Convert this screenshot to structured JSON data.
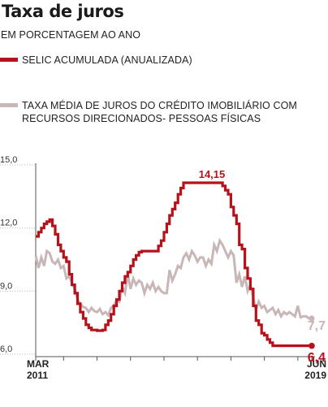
{
  "header": {
    "title": "Taxa de juros",
    "subtitle": "EM PORCENTAGEM AO ANO"
  },
  "colors": {
    "selic": "#b5121b",
    "imobiliario": "#c9b6b6",
    "axis": "#555555",
    "grid": "#bbbbbb"
  },
  "chart_data": {
    "type": "line",
    "title": "Taxa de juros",
    "subtitle": "EM PORCENTAGEM AO ANO",
    "ylim": [
      6.0,
      15.0
    ],
    "yticks": [
      "15,0",
      "12,0",
      "9,0",
      "6,0"
    ],
    "yticks_values": [
      15.0,
      12.0,
      9.0,
      6.0
    ],
    "x_start": "2011-03",
    "x_end": "2019-06",
    "xtick_labels": [
      {
        "month": "MAR",
        "year": "2011"
      },
      {
        "month": "JUN",
        "year": "2019"
      }
    ],
    "grid": false,
    "legend_position": "top-left",
    "annotations": {
      "peak_label": "14,15",
      "selic_end_label": "6,4",
      "imobiliario_end_label": "7,7"
    },
    "series": [
      {
        "name": "SELIC ACUMULADA (ANUALIZADA)",
        "legend_label": "SELIC ACUMULADA (ANUALIZADA)",
        "color": "#b5121b",
        "step": true,
        "points": [
          [
            "2011-03",
            11.6
          ],
          [
            "2011-04",
            11.8
          ],
          [
            "2011-05",
            12.0
          ],
          [
            "2011-06",
            12.2
          ],
          [
            "2011-07",
            12.3
          ],
          [
            "2011-08",
            12.4
          ],
          [
            "2011-09",
            12.1
          ],
          [
            "2011-10",
            11.7
          ],
          [
            "2011-11",
            11.2
          ],
          [
            "2011-12",
            10.9
          ],
          [
            "2012-01",
            10.6
          ],
          [
            "2012-02",
            10.4
          ],
          [
            "2012-03",
            9.8
          ],
          [
            "2012-04",
            9.3
          ],
          [
            "2012-05",
            8.9
          ],
          [
            "2012-06",
            8.4
          ],
          [
            "2012-07",
            8.0
          ],
          [
            "2012-08",
            7.7
          ],
          [
            "2012-09",
            7.4
          ],
          [
            "2012-10",
            7.25
          ],
          [
            "2012-11",
            7.15
          ],
          [
            "2012-12",
            7.15
          ],
          [
            "2013-01",
            7.12
          ],
          [
            "2013-02",
            7.12
          ],
          [
            "2013-03",
            7.15
          ],
          [
            "2013-04",
            7.4
          ],
          [
            "2013-05",
            7.6
          ],
          [
            "2013-06",
            7.9
          ],
          [
            "2013-07",
            8.3
          ],
          [
            "2013-08",
            8.6
          ],
          [
            "2013-09",
            9.0
          ],
          [
            "2013-10",
            9.4
          ],
          [
            "2013-11",
            9.7
          ],
          [
            "2013-12",
            9.9
          ],
          [
            "2014-01",
            10.2
          ],
          [
            "2014-02",
            10.5
          ],
          [
            "2014-03",
            10.7
          ],
          [
            "2014-04",
            10.85
          ],
          [
            "2014-05",
            10.9
          ],
          [
            "2014-06",
            10.9
          ],
          [
            "2014-07",
            10.9
          ],
          [
            "2014-08",
            10.9
          ],
          [
            "2014-09",
            10.9
          ],
          [
            "2014-10",
            10.9
          ],
          [
            "2014-11",
            11.15
          ],
          [
            "2014-12",
            11.4
          ],
          [
            "2015-01",
            11.8
          ],
          [
            "2015-02",
            12.2
          ],
          [
            "2015-03",
            12.6
          ],
          [
            "2015-04",
            12.9
          ],
          [
            "2015-05",
            13.2
          ],
          [
            "2015-06",
            13.6
          ],
          [
            "2015-07",
            13.9
          ],
          [
            "2015-08",
            14.15
          ],
          [
            "2015-09",
            14.15
          ],
          [
            "2015-10",
            14.15
          ],
          [
            "2015-11",
            14.15
          ],
          [
            "2015-12",
            14.15
          ],
          [
            "2016-01",
            14.15
          ],
          [
            "2016-02",
            14.15
          ],
          [
            "2016-03",
            14.15
          ],
          [
            "2016-04",
            14.15
          ],
          [
            "2016-05",
            14.15
          ],
          [
            "2016-06",
            14.15
          ],
          [
            "2016-07",
            14.15
          ],
          [
            "2016-08",
            14.15
          ],
          [
            "2016-09",
            14.15
          ],
          [
            "2016-10",
            14.0
          ],
          [
            "2016-11",
            13.8
          ],
          [
            "2016-12",
            13.6
          ],
          [
            "2017-01",
            13.0
          ],
          [
            "2017-02",
            12.6
          ],
          [
            "2017-03",
            12.2
          ],
          [
            "2017-04",
            11.2
          ],
          [
            "2017-05",
            11.0
          ],
          [
            "2017-06",
            10.1
          ],
          [
            "2017-07",
            9.6
          ],
          [
            "2017-08",
            9.1
          ],
          [
            "2017-09",
            8.3
          ],
          [
            "2017-10",
            7.6
          ],
          [
            "2017-11",
            7.4
          ],
          [
            "2017-12",
            7.0
          ],
          [
            "2018-01",
            6.9
          ],
          [
            "2018-02",
            6.7
          ],
          [
            "2018-03",
            6.55
          ],
          [
            "2018-04",
            6.4
          ],
          [
            "2018-05",
            6.4
          ],
          [
            "2018-06",
            6.4
          ],
          [
            "2018-07",
            6.4
          ],
          [
            "2018-08",
            6.4
          ],
          [
            "2018-09",
            6.4
          ],
          [
            "2018-10",
            6.4
          ],
          [
            "2018-11",
            6.4
          ],
          [
            "2018-12",
            6.4
          ],
          [
            "2019-01",
            6.4
          ],
          [
            "2019-02",
            6.4
          ],
          [
            "2019-03",
            6.4
          ],
          [
            "2019-04",
            6.4
          ],
          [
            "2019-05",
            6.4
          ],
          [
            "2019-06",
            6.4
          ]
        ]
      },
      {
        "name": "TAXA MÉDIA DE JUROS DO CRÉDITO IMOBILIÁRIO COM RECURSOS DIRECIONADOS- PESSOAS FÍSICAS",
        "legend_label": "TAXA MÉDIA DE JUROS DO CRÉDITO IMOBILIÁRIO COM RECURSOS DIRECIONADOS- PESSOAS FÍSICAS",
        "color": "#c9b6b6",
        "step": false,
        "points": [
          [
            "2011-03",
            10.7
          ],
          [
            "2011-04",
            10.1
          ],
          [
            "2011-05",
            10.6
          ],
          [
            "2011-06",
            10.2
          ],
          [
            "2011-07",
            10.9
          ],
          [
            "2011-08",
            10.8
          ],
          [
            "2011-09",
            10.4
          ],
          [
            "2011-10",
            10.3
          ],
          [
            "2011-11",
            10.5
          ],
          [
            "2011-12",
            10.1
          ],
          [
            "2012-01",
            10.2
          ],
          [
            "2012-02",
            9.6
          ],
          [
            "2012-03",
            9.7
          ],
          [
            "2012-04",
            9.4
          ],
          [
            "2012-05",
            9.1
          ],
          [
            "2012-06",
            8.6
          ],
          [
            "2012-07",
            8.4
          ],
          [
            "2012-08",
            8.25
          ],
          [
            "2012-09",
            8.2
          ],
          [
            "2012-10",
            8.0
          ],
          [
            "2012-11",
            8.2
          ],
          [
            "2012-12",
            8.05
          ],
          [
            "2013-01",
            8.0
          ],
          [
            "2013-02",
            8.15
          ],
          [
            "2013-03",
            7.9
          ],
          [
            "2013-04",
            8.0
          ],
          [
            "2013-05",
            7.85
          ],
          [
            "2013-06",
            8.2
          ],
          [
            "2013-07",
            8.3
          ],
          [
            "2013-08",
            8.6
          ],
          [
            "2013-09",
            8.5
          ],
          [
            "2013-10",
            9.2
          ],
          [
            "2013-11",
            8.9
          ],
          [
            "2013-12",
            9.8
          ],
          [
            "2014-01",
            9.1
          ],
          [
            "2014-02",
            9.6
          ],
          [
            "2014-03",
            9.3
          ],
          [
            "2014-04",
            9.5
          ],
          [
            "2014-05",
            9.4
          ],
          [
            "2014-06",
            8.9
          ],
          [
            "2014-07",
            9.3
          ],
          [
            "2014-08",
            9.1
          ],
          [
            "2014-09",
            9.4
          ],
          [
            "2014-10",
            9.0
          ],
          [
            "2014-11",
            9.2
          ],
          [
            "2014-12",
            9.0
          ],
          [
            "2015-01",
            8.9
          ],
          [
            "2015-02",
            8.9
          ],
          [
            "2015-03",
            10.0
          ],
          [
            "2015-04",
            9.5
          ],
          [
            "2015-05",
            9.8
          ],
          [
            "2015-06",
            10.2
          ],
          [
            "2015-07",
            10.1
          ],
          [
            "2015-08",
            10.6
          ],
          [
            "2015-09",
            10.8
          ],
          [
            "2015-10",
            10.5
          ],
          [
            "2015-11",
            10.9
          ],
          [
            "2015-12",
            10.7
          ],
          [
            "2016-01",
            10.4
          ],
          [
            "2016-02",
            10.6
          ],
          [
            "2016-03",
            10.6
          ],
          [
            "2016-04",
            10.2
          ],
          [
            "2016-05",
            10.5
          ],
          [
            "2016-06",
            10.3
          ],
          [
            "2016-07",
            11.2
          ],
          [
            "2016-08",
            10.9
          ],
          [
            "2016-09",
            11.4
          ],
          [
            "2016-10",
            11.2
          ],
          [
            "2016-11",
            10.9
          ],
          [
            "2016-12",
            10.6
          ],
          [
            "2017-01",
            10.9
          ],
          [
            "2017-02",
            10.7
          ],
          [
            "2017-03",
            9.4
          ],
          [
            "2017-04",
            9.8
          ],
          [
            "2017-05",
            9.2
          ],
          [
            "2017-06",
            9.7
          ],
          [
            "2017-07",
            9.0
          ],
          [
            "2017-08",
            9.3
          ],
          [
            "2017-09",
            8.7
          ],
          [
            "2017-10",
            8.1
          ],
          [
            "2017-11",
            8.5
          ],
          [
            "2017-12",
            8.2
          ],
          [
            "2018-01",
            8.3
          ],
          [
            "2018-02",
            8.0
          ],
          [
            "2018-03",
            8.1
          ],
          [
            "2018-04",
            8.2
          ],
          [
            "2018-05",
            7.9
          ],
          [
            "2018-06",
            8.1
          ],
          [
            "2018-07",
            7.8
          ],
          [
            "2018-08",
            8.0
          ],
          [
            "2018-09",
            7.9
          ],
          [
            "2018-10",
            8.0
          ],
          [
            "2018-11",
            7.9
          ],
          [
            "2018-12",
            7.8
          ],
          [
            "2019-01",
            8.3
          ],
          [
            "2019-02",
            7.75
          ],
          [
            "2019-03",
            7.8
          ],
          [
            "2019-04",
            7.8
          ],
          [
            "2019-05",
            7.7
          ],
          [
            "2019-06",
            7.7
          ]
        ]
      }
    ]
  }
}
